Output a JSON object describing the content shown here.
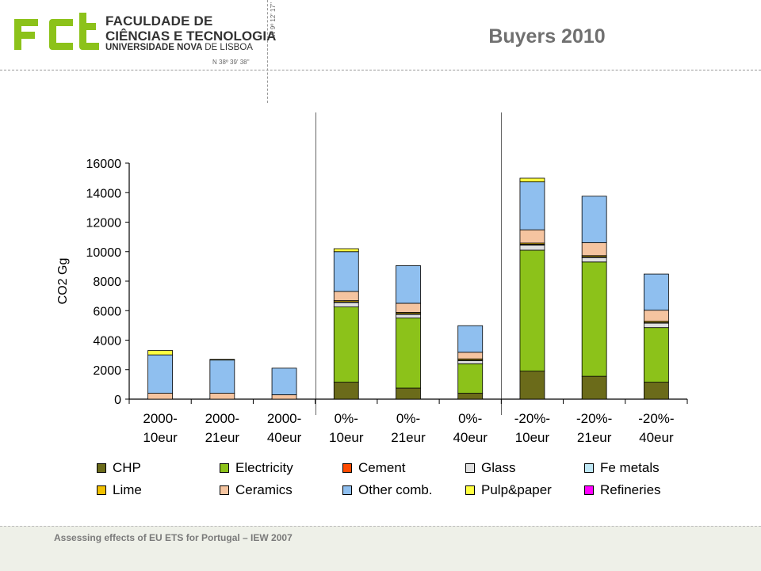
{
  "header": {
    "logo_line1": "FACULDADE DE",
    "logo_line2": "CIÊNCIAS E TECNOLOGIA",
    "logo_line3_bold": "UNIVERSIDADE NOVA",
    "logo_line3_light": "DE LISBOA",
    "coord_n": "N 38º 39' 38''",
    "coord_w": "W 9º 12' 17''"
  },
  "footer": {
    "text": "Assessing effects of EU ETS for Portugal – IEW 2007"
  },
  "colors": {
    "CHP": "#6b6b1a",
    "Electricity": "#8cc21a",
    "Cement": "#ff4a00",
    "Glass": "#e0e0e0",
    "Fe metals": "#bfe8f5",
    "Lime": "#f0c000",
    "Ceramics": "#f5c4a0",
    "Other comb.": "#8fbfef",
    "Pulp&paper": "#ffff40",
    "Refineries": "#ff00ff"
  },
  "chart_data": {
    "type": "bar",
    "stacked": true,
    "title": "Buyers 2010",
    "ylabel": "CO2 Gg",
    "xlabel": "",
    "ylim": [
      0,
      16000
    ],
    "yticks": [
      "0",
      "2000",
      "4000",
      "6000",
      "8000",
      "10000",
      "12000",
      "14000",
      "16000"
    ],
    "ytick_values": [
      0,
      2000,
      4000,
      6000,
      8000,
      10000,
      12000,
      14000,
      16000
    ],
    "grid": false,
    "legend_position": "bottom",
    "categories": [
      [
        "2000-",
        "10eur"
      ],
      [
        "2000-",
        "21eur"
      ],
      [
        "2000-",
        "40eur"
      ],
      [
        "0%-",
        "10eur"
      ],
      [
        "0%-",
        "21eur"
      ],
      [
        "0%-",
        "40eur"
      ],
      [
        "-20%-",
        "10eur"
      ],
      [
        "-20%-",
        "21eur"
      ],
      [
        "-20%-",
        "40eur"
      ]
    ],
    "series": [
      {
        "name": "CHP",
        "values": [
          0,
          0,
          0,
          1150,
          750,
          400,
          1900,
          1550,
          1150
        ]
      },
      {
        "name": "Electricity",
        "values": [
          0,
          0,
          0,
          5100,
          4750,
          2000,
          8200,
          7750,
          3700
        ]
      },
      {
        "name": "Cement",
        "values": [
          0,
          0,
          0,
          0,
          0,
          0,
          0,
          0,
          0
        ]
      },
      {
        "name": "Glass",
        "values": [
          0,
          0,
          0,
          300,
          250,
          200,
          350,
          300,
          300
        ]
      },
      {
        "name": "Fe metals",
        "values": [
          0,
          0,
          0,
          50,
          50,
          50,
          50,
          50,
          50
        ]
      },
      {
        "name": "Lime",
        "values": [
          0,
          0,
          0,
          80,
          80,
          80,
          80,
          80,
          80
        ]
      },
      {
        "name": "Ceramics",
        "values": [
          400,
          400,
          300,
          620,
          620,
          450,
          900,
          880,
          750
        ]
      },
      {
        "name": "Other comb.",
        "values": [
          2600,
          2250,
          1800,
          2700,
          2550,
          1800,
          3250,
          3150,
          2450
        ]
      },
      {
        "name": "Pulp&paper",
        "values": [
          300,
          50,
          0,
          200,
          0,
          0,
          250,
          0,
          0
        ]
      },
      {
        "name": "Refineries",
        "values": [
          0,
          0,
          0,
          0,
          0,
          0,
          0,
          0,
          0
        ]
      }
    ]
  }
}
